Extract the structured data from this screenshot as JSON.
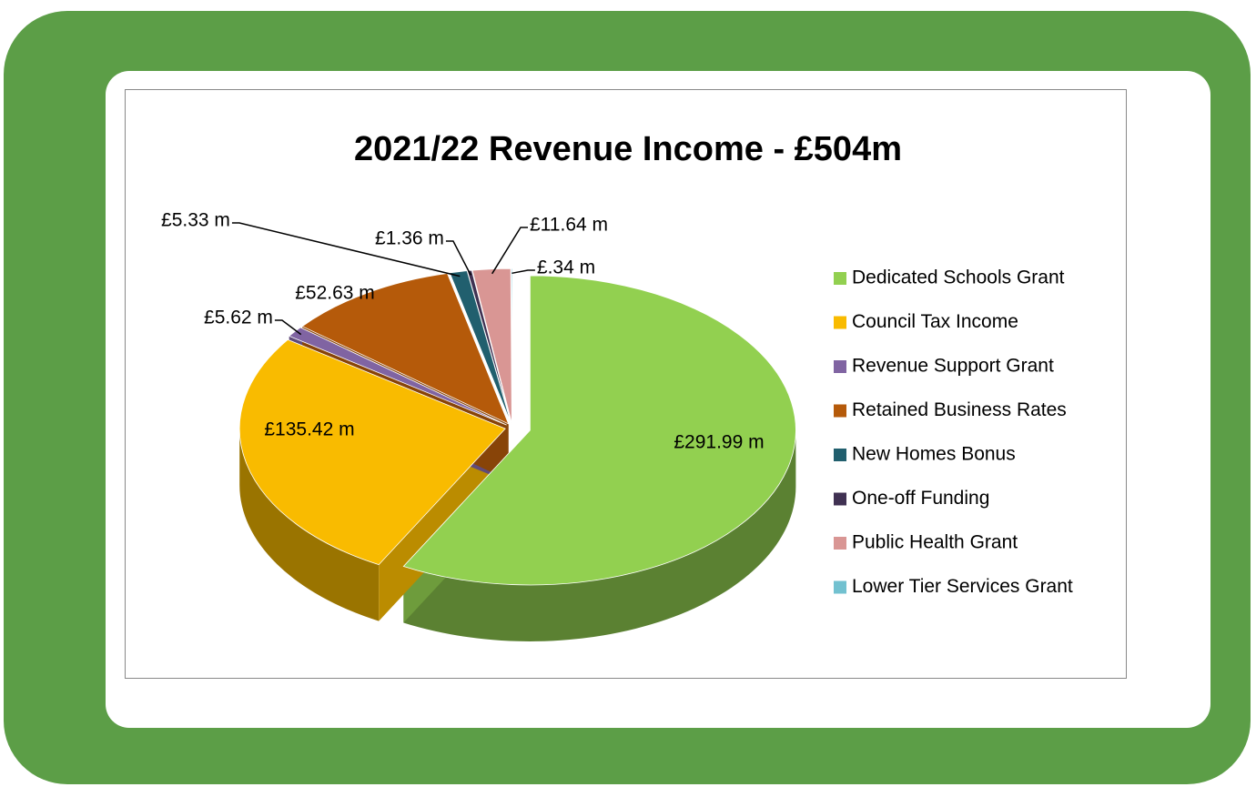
{
  "chart_data": {
    "type": "pie",
    "title": "2021/22  Revenue Income - £504m",
    "categories": [
      "Dedicated Schools Grant",
      "Council Tax Income",
      "Revenue Support Grant",
      "Retained Business Rates",
      "New Homes Bonus",
      "One-off Funding",
      "Public Health Grant",
      "Lower Tier Services Grant"
    ],
    "values": [
      291.99,
      135.42,
      5.62,
      52.63,
      5.33,
      1.36,
      11.64,
      0.34
    ],
    "value_labels": [
      "£291.99 m",
      "£135.42 m",
      "£5.62 m",
      "£52.63 m",
      "£5.33 m",
      "£1.36 m",
      "£11.64 m",
      "£.34 m"
    ],
    "colors": [
      "#92d050",
      "#f9bb00",
      "#8064a2",
      "#b55a0a",
      "#215f6e",
      "#403152",
      "#d99694",
      "#72c1d0"
    ],
    "legend": "right"
  }
}
